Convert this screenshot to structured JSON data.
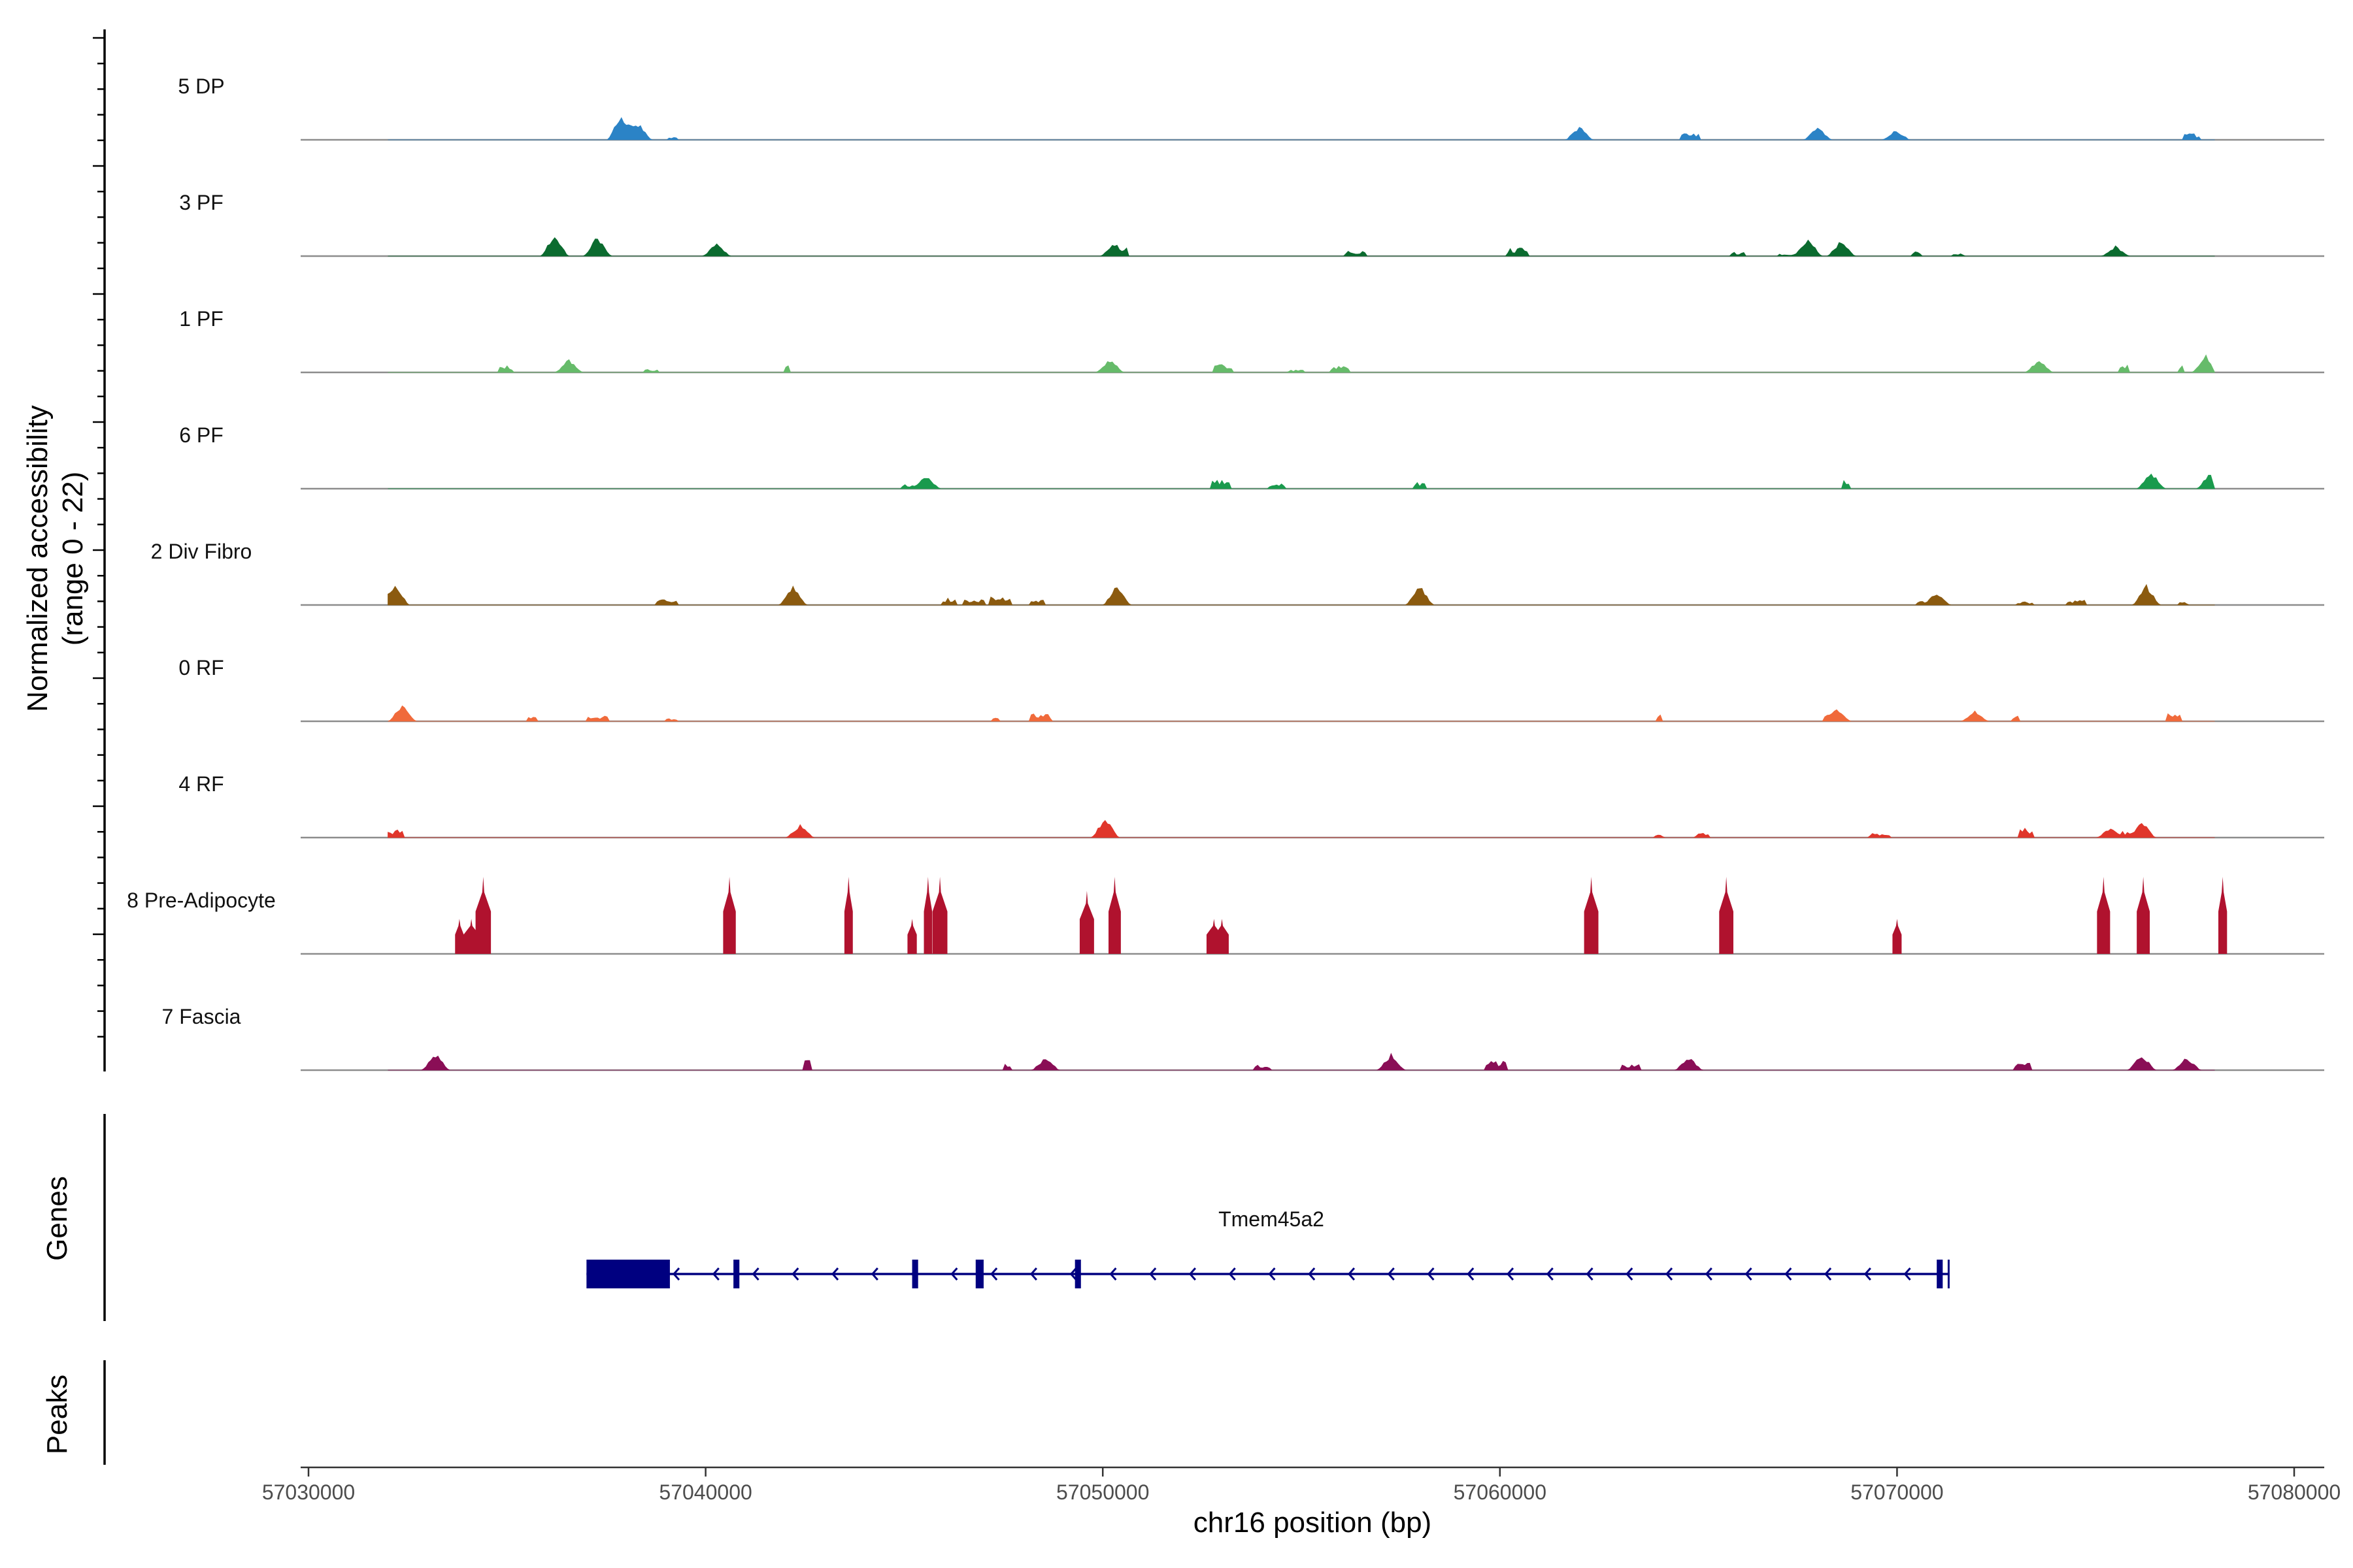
{
  "chart_data": {
    "type": "coverage-track",
    "chromosome": "chr16",
    "xlabel": "chr16 position (bp)",
    "xlim": [
      57030000,
      57080000
    ],
    "x_ticks": [
      57030000,
      57040000,
      57050000,
      57060000,
      57070000,
      57080000
    ],
    "x_tick_labels": [
      "57030000",
      "57040000",
      "57050000",
      "57060000",
      "57070000",
      "57080000"
    ],
    "region_start": 57032000,
    "region_end": 57078000,
    "ylabel_line1": "Normalized accessibility",
    "ylabel_line2": "(range 0 - 22)",
    "y_range": [
      0,
      22
    ],
    "tracks": [
      {
        "name": "5 DP",
        "color": "#2b83c6",
        "density": 0.3,
        "max_height": 8,
        "peaks": [
          [
            57037900,
            8
          ],
          [
            57038100,
            6
          ],
          [
            57038300,
            5
          ],
          [
            57062000,
            4
          ],
          [
            57068000,
            4
          ],
          [
            57070000,
            3
          ]
        ]
      },
      {
        "name": "3 PF",
        "color": "#0b6b2f",
        "density": 0.55,
        "max_height": 7,
        "peaks": [
          [
            57036200,
            7
          ],
          [
            57037300,
            6
          ],
          [
            57040300,
            4
          ],
          [
            57050300,
            4
          ],
          [
            57067800,
            6
          ],
          [
            57068600,
            5
          ],
          [
            57075500,
            3
          ]
        ]
      },
      {
        "name": "1 PF",
        "color": "#66bb6a",
        "density": 0.6,
        "max_height": 5,
        "peaks": [
          [
            57036600,
            4
          ],
          [
            57050200,
            4
          ],
          [
            57073600,
            4
          ],
          [
            57077800,
            5
          ]
        ]
      },
      {
        "name": "6 PF",
        "color": "#1a9a4d",
        "density": 0.45,
        "max_height": 5,
        "peaks": [
          [
            57045600,
            4
          ],
          [
            57076400,
            5
          ],
          [
            57077900,
            5
          ]
        ]
      },
      {
        "name": "2 Div Fibro",
        "color": "#8b5a0f",
        "density": 0.75,
        "max_height": 7,
        "peaks": [
          [
            57032200,
            7
          ],
          [
            57042200,
            6
          ],
          [
            57050400,
            6
          ],
          [
            57058000,
            6
          ],
          [
            57071000,
            4
          ],
          [
            57076300,
            6
          ]
        ]
      },
      {
        "name": "0 RF",
        "color": "#f06a3b",
        "density": 0.6,
        "max_height": 5,
        "peaks": [
          [
            57032400,
            5
          ],
          [
            57068500,
            4
          ],
          [
            57072000,
            3
          ]
        ]
      },
      {
        "name": "4 RF",
        "color": "#e0362b",
        "density": 0.55,
        "max_height": 6,
        "peaks": [
          [
            57042400,
            4
          ],
          [
            57050100,
            6
          ],
          [
            57076200,
            5
          ],
          [
            57075400,
            3
          ]
        ]
      },
      {
        "name": "8 Pre-Adipocyte",
        "color": "#b0122e",
        "density": 0.0,
        "max_height": 22,
        "spikes": [
          [
            57033800,
            10
          ],
          [
            57034100,
            10
          ],
          [
            57034400,
            22
          ],
          [
            57040600,
            22
          ],
          [
            57043600,
            22
          ],
          [
            57045200,
            10
          ],
          [
            57045600,
            22
          ],
          [
            57045900,
            22
          ],
          [
            57049600,
            18
          ],
          [
            57050300,
            22
          ],
          [
            57052800,
            10
          ],
          [
            57053000,
            10
          ],
          [
            57062300,
            22
          ],
          [
            57065700,
            22
          ],
          [
            57070000,
            10
          ],
          [
            57075200,
            22
          ],
          [
            57076200,
            22
          ],
          [
            57078200,
            22
          ]
        ]
      },
      {
        "name": "7 Fascia",
        "color": "#8a0e56",
        "density": 0.4,
        "max_height": 5,
        "peaks": [
          [
            57033200,
            5
          ],
          [
            57048600,
            4
          ],
          [
            57057300,
            5
          ],
          [
            57064800,
            4
          ],
          [
            57076200,
            5
          ],
          [
            57077300,
            4
          ]
        ]
      }
    ],
    "gene_panel_label": "Genes",
    "gene": {
      "name": "Tmem45a2",
      "color": "#000080",
      "start": 57037000,
      "end": 57071300,
      "strand": "-",
      "exons": [
        [
          57037000,
          57039100
        ],
        [
          57040700,
          57040850
        ],
        [
          57045200,
          57045350
        ],
        [
          57046800,
          57047000
        ],
        [
          57049300,
          57049450
        ],
        [
          57071000,
          57071150
        ]
      ]
    },
    "peaks_panel_label": "Peaks"
  }
}
